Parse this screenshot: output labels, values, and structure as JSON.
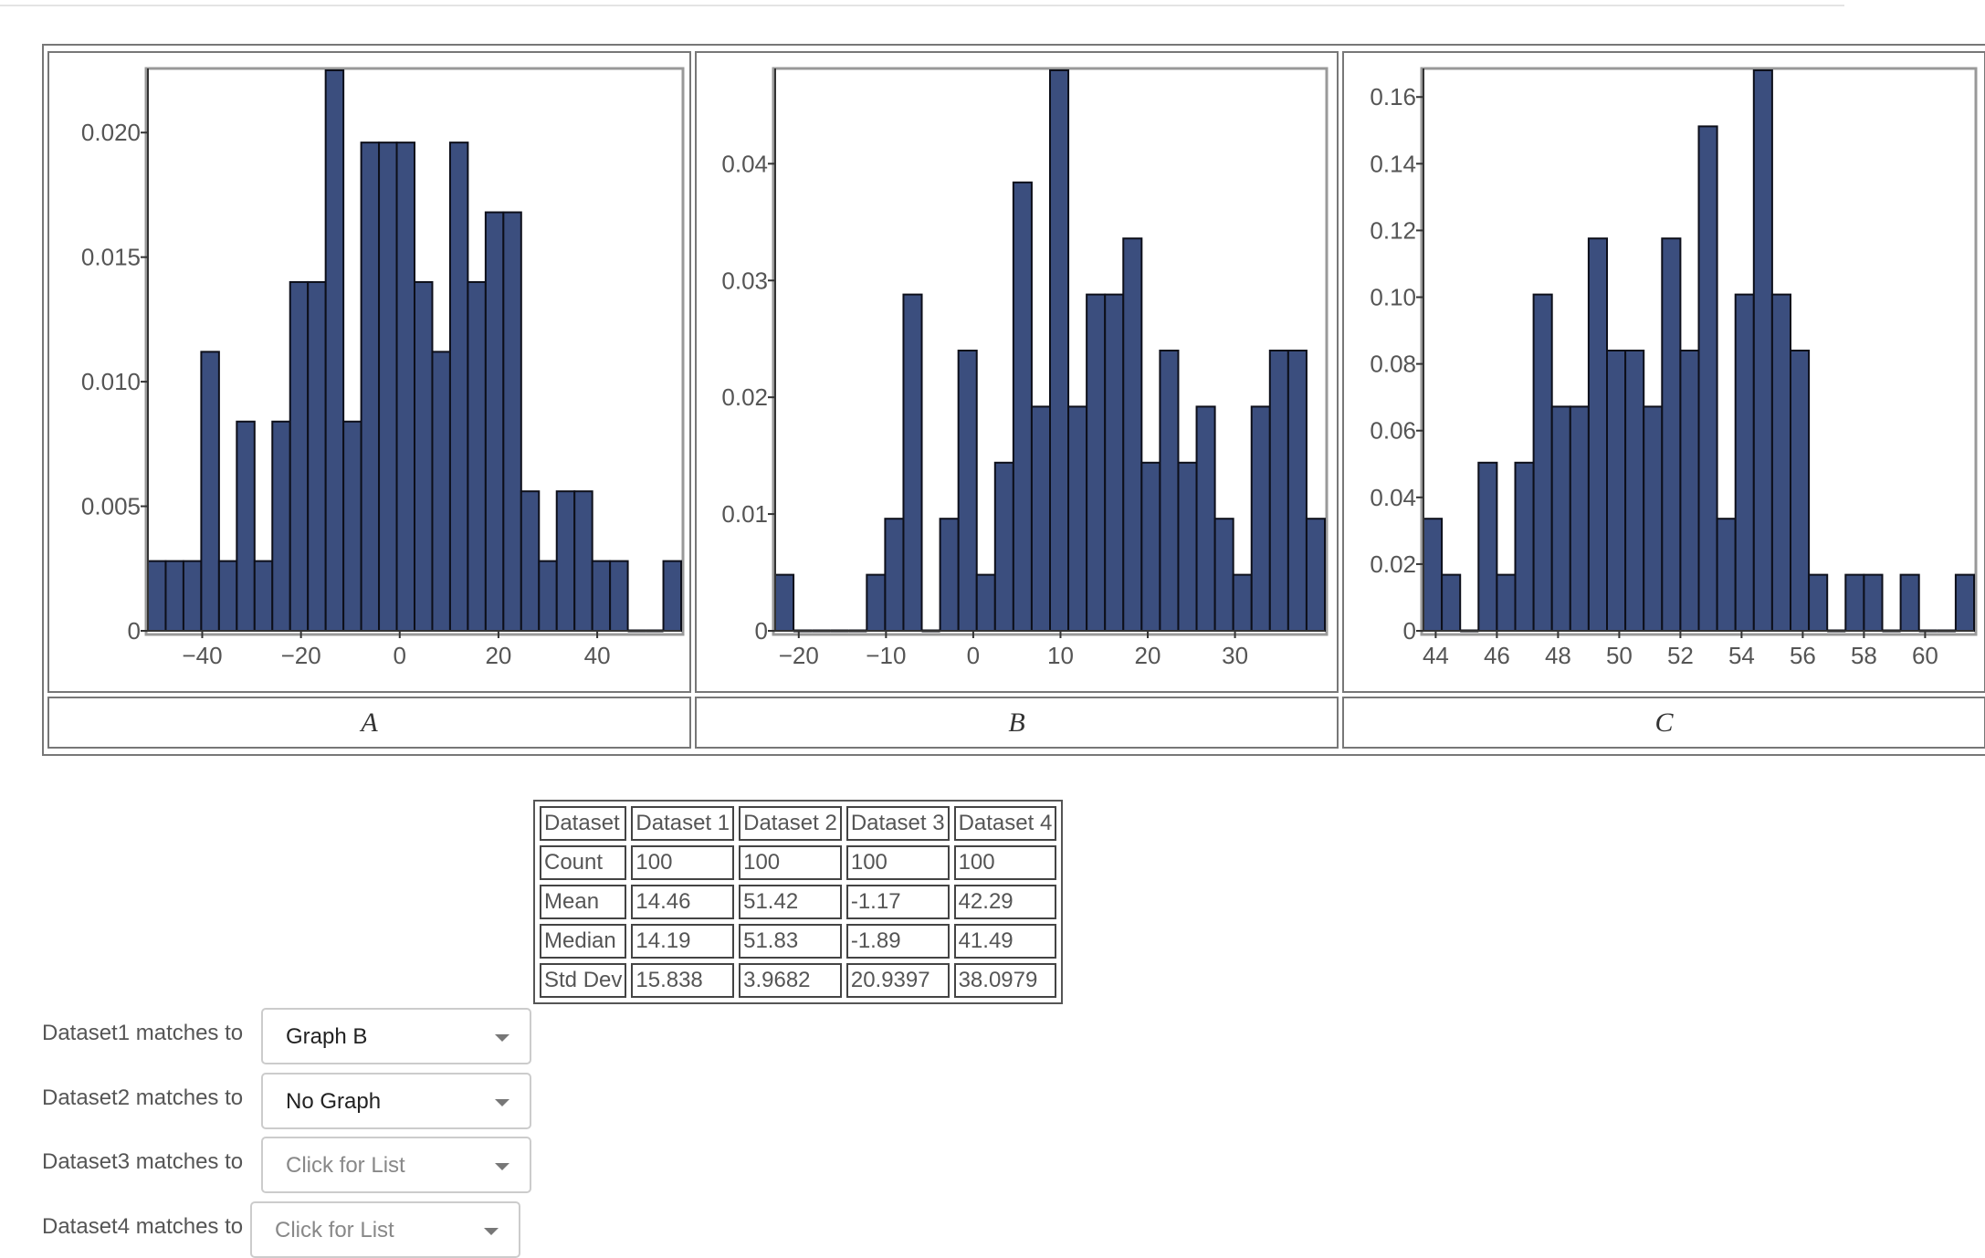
{
  "chart_data": [
    {
      "type": "bar",
      "caption": "A",
      "xticks": [
        -40,
        -20,
        0,
        20,
        40
      ],
      "ylim": [
        0,
        0.0225
      ],
      "yticks": [
        0,
        0.005,
        0.01,
        0.015,
        0.02
      ],
      "yticklabels": [
        "0",
        "0.005",
        "0.010",
        "0.015",
        "0.020"
      ],
      "bins": [
        {
          "x0": -51,
          "x1": -47.4,
          "y": 0.0028
        },
        {
          "x0": -47.4,
          "x1": -43.8,
          "y": 0.0028
        },
        {
          "x0": -43.8,
          "x1": -40.2,
          "y": 0.0028
        },
        {
          "x0": -40.2,
          "x1": -36.6,
          "y": 0.0112
        },
        {
          "x0": -36.6,
          "x1": -33,
          "y": 0.0028
        },
        {
          "x0": -33,
          "x1": -29.4,
          "y": 0.0084
        },
        {
          "x0": -29.4,
          "x1": -25.8,
          "y": 0.0028
        },
        {
          "x0": -25.8,
          "x1": -22.2,
          "y": 0.0084
        },
        {
          "x0": -22.2,
          "x1": -18.6,
          "y": 0.014
        },
        {
          "x0": -18.6,
          "x1": -15,
          "y": 0.014
        },
        {
          "x0": -15,
          "x1": -11.4,
          "y": 0.0225
        },
        {
          "x0": -11.4,
          "x1": -7.8,
          "y": 0.0084
        },
        {
          "x0": -7.8,
          "x1": -4.2,
          "y": 0.0196
        },
        {
          "x0": -4.2,
          "x1": -0.6,
          "y": 0.0196
        },
        {
          "x0": -0.6,
          "x1": 3,
          "y": 0.0196
        },
        {
          "x0": 3,
          "x1": 6.6,
          "y": 0.014
        },
        {
          "x0": 6.6,
          "x1": 10.2,
          "y": 0.0112
        },
        {
          "x0": 10.2,
          "x1": 13.8,
          "y": 0.0196
        },
        {
          "x0": 13.8,
          "x1": 17.4,
          "y": 0.014
        },
        {
          "x0": 17.4,
          "x1": 21,
          "y": 0.0168
        },
        {
          "x0": 21,
          "x1": 24.6,
          "y": 0.0168
        },
        {
          "x0": 24.6,
          "x1": 28.2,
          "y": 0.0056
        },
        {
          "x0": 28.2,
          "x1": 31.8,
          "y": 0.0028
        },
        {
          "x0": 31.8,
          "x1": 35.4,
          "y": 0.0056
        },
        {
          "x0": 35.4,
          "x1": 39,
          "y": 0.0056
        },
        {
          "x0": 39,
          "x1": 42.6,
          "y": 0.0028
        },
        {
          "x0": 42.6,
          "x1": 46.2,
          "y": 0.0028
        },
        {
          "x0": 46.2,
          "x1": 49.8,
          "y": 0
        },
        {
          "x0": 49.8,
          "x1": 53.4,
          "y": 0
        },
        {
          "x0": 53.4,
          "x1": 57,
          "y": 0.0028
        }
      ]
    },
    {
      "type": "bar",
      "caption": "B",
      "xticks": [
        -20,
        -10,
        0,
        10,
        20,
        30
      ],
      "ylim": [
        0,
        0.048
      ],
      "yticks": [
        0,
        0.01,
        0.02,
        0.03,
        0.04
      ],
      "yticklabels": [
        "0",
        "0.01",
        "0.02",
        "0.03",
        "0.04"
      ],
      "bins": [
        {
          "x0": -22.7,
          "x1": -20.6,
          "y": 0.0048
        },
        {
          "x0": -20.6,
          "x1": -18.5,
          "y": 0
        },
        {
          "x0": -18.5,
          "x1": -16.4,
          "y": 0
        },
        {
          "x0": -16.4,
          "x1": -14.3,
          "y": 0
        },
        {
          "x0": -14.3,
          "x1": -12.2,
          "y": 0
        },
        {
          "x0": -12.2,
          "x1": -10.1,
          "y": 0.0048
        },
        {
          "x0": -10.1,
          "x1": -8,
          "y": 0.0096
        },
        {
          "x0": -8,
          "x1": -5.9,
          "y": 0.0288
        },
        {
          "x0": -5.9,
          "x1": -3.8,
          "y": 0
        },
        {
          "x0": -3.8,
          "x1": -1.7,
          "y": 0.0096
        },
        {
          "x0": -1.7,
          "x1": 0.4,
          "y": 0.024
        },
        {
          "x0": 0.4,
          "x1": 2.5,
          "y": 0.0048
        },
        {
          "x0": 2.5,
          "x1": 4.6,
          "y": 0.0144
        },
        {
          "x0": 4.6,
          "x1": 6.7,
          "y": 0.0384
        },
        {
          "x0": 6.7,
          "x1": 8.8,
          "y": 0.0192
        },
        {
          "x0": 8.8,
          "x1": 10.9,
          "y": 0.048
        },
        {
          "x0": 10.9,
          "x1": 13,
          "y": 0.0192
        },
        {
          "x0": 13,
          "x1": 15.1,
          "y": 0.0288
        },
        {
          "x0": 15.1,
          "x1": 17.2,
          "y": 0.0288
        },
        {
          "x0": 17.2,
          "x1": 19.3,
          "y": 0.0336
        },
        {
          "x0": 19.3,
          "x1": 21.4,
          "y": 0.0144
        },
        {
          "x0": 21.4,
          "x1": 23.5,
          "y": 0.024
        },
        {
          "x0": 23.5,
          "x1": 25.6,
          "y": 0.0144
        },
        {
          "x0": 25.6,
          "x1": 27.7,
          "y": 0.0192
        },
        {
          "x0": 27.7,
          "x1": 29.8,
          "y": 0.0096
        },
        {
          "x0": 29.8,
          "x1": 31.9,
          "y": 0.0048
        },
        {
          "x0": 31.9,
          "x1": 34,
          "y": 0.0192
        },
        {
          "x0": 34,
          "x1": 36.1,
          "y": 0.024
        },
        {
          "x0": 36.1,
          "x1": 38.2,
          "y": 0.024
        },
        {
          "x0": 38.2,
          "x1": 40.3,
          "y": 0.0096
        }
      ]
    },
    {
      "type": "bar",
      "caption": "C",
      "xticks": [
        44,
        46,
        48,
        50,
        52,
        54,
        56,
        58,
        60
      ],
      "ylim": [
        0,
        0.168
      ],
      "yticks": [
        0,
        0.02,
        0.04,
        0.06,
        0.08,
        0.1,
        0.12,
        0.14,
        0.16
      ],
      "yticklabels": [
        "0",
        "0.02",
        "0.04",
        "0.06",
        "0.08",
        "0.10",
        "0.12",
        "0.14",
        "0.16"
      ],
      "bins": [
        {
          "x0": 43.6,
          "x1": 44.2,
          "y": 0.0336
        },
        {
          "x0": 44.2,
          "x1": 44.8,
          "y": 0.0168
        },
        {
          "x0": 44.8,
          "x1": 45.4,
          "y": 0
        },
        {
          "x0": 45.4,
          "x1": 46,
          "y": 0.0504
        },
        {
          "x0": 46,
          "x1": 46.6,
          "y": 0.0168
        },
        {
          "x0": 46.6,
          "x1": 47.2,
          "y": 0.0504
        },
        {
          "x0": 47.2,
          "x1": 47.8,
          "y": 0.1008
        },
        {
          "x0": 47.8,
          "x1": 48.4,
          "y": 0.0672
        },
        {
          "x0": 48.4,
          "x1": 49,
          "y": 0.0672
        },
        {
          "x0": 49,
          "x1": 49.6,
          "y": 0.1176
        },
        {
          "x0": 49.6,
          "x1": 50.2,
          "y": 0.084
        },
        {
          "x0": 50.2,
          "x1": 50.8,
          "y": 0.084
        },
        {
          "x0": 50.8,
          "x1": 51.4,
          "y": 0.0672
        },
        {
          "x0": 51.4,
          "x1": 52,
          "y": 0.1176
        },
        {
          "x0": 52,
          "x1": 52.6,
          "y": 0.084
        },
        {
          "x0": 52.6,
          "x1": 53.2,
          "y": 0.1512
        },
        {
          "x0": 53.2,
          "x1": 53.8,
          "y": 0.0336
        },
        {
          "x0": 53.8,
          "x1": 54.4,
          "y": 0.1008
        },
        {
          "x0": 54.4,
          "x1": 55,
          "y": 0.168
        },
        {
          "x0": 55,
          "x1": 55.6,
          "y": 0.1008
        },
        {
          "x0": 55.6,
          "x1": 56.2,
          "y": 0.084
        },
        {
          "x0": 56.2,
          "x1": 56.8,
          "y": 0.0168
        },
        {
          "x0": 56.8,
          "x1": 57.4,
          "y": 0
        },
        {
          "x0": 57.4,
          "x1": 58,
          "y": 0.0168
        },
        {
          "x0": 58,
          "x1": 58.6,
          "y": 0.0168
        },
        {
          "x0": 58.6,
          "x1": 59.2,
          "y": 0
        },
        {
          "x0": 59.2,
          "x1": 59.8,
          "y": 0.0168
        },
        {
          "x0": 59.8,
          "x1": 60.4,
          "y": 0
        },
        {
          "x0": 60.4,
          "x1": 61,
          "y": 0
        },
        {
          "x0": 61,
          "x1": 61.6,
          "y": 0.0168
        }
      ]
    }
  ],
  "colors": {
    "bar_fill": "#3b4e7e",
    "bar_edge": "#0d0f1a"
  },
  "stats_table": {
    "rows": [
      [
        "Dataset",
        "Dataset 1",
        "Dataset 2",
        "Dataset 3",
        "Dataset 4"
      ],
      [
        "Count",
        "100",
        "100",
        "100",
        "100"
      ],
      [
        "Mean",
        "14.46",
        "51.42",
        "-1.17",
        "42.29"
      ],
      [
        "Median",
        "14.19",
        "51.83",
        "-1.89",
        "41.49"
      ],
      [
        "Std Dev",
        "15.838",
        "3.9682",
        "20.9397",
        "38.0979"
      ]
    ]
  },
  "matches": [
    {
      "label": "Dataset1 matches to",
      "value": "Graph B",
      "placeholder": false
    },
    {
      "label": "Dataset2 matches to",
      "value": "No Graph",
      "placeholder": false
    },
    {
      "label": "Dataset3 matches to",
      "value": "Click for List",
      "placeholder": true
    },
    {
      "label": "Dataset4 matches to",
      "value": "Click for List",
      "placeholder": true
    }
  ]
}
